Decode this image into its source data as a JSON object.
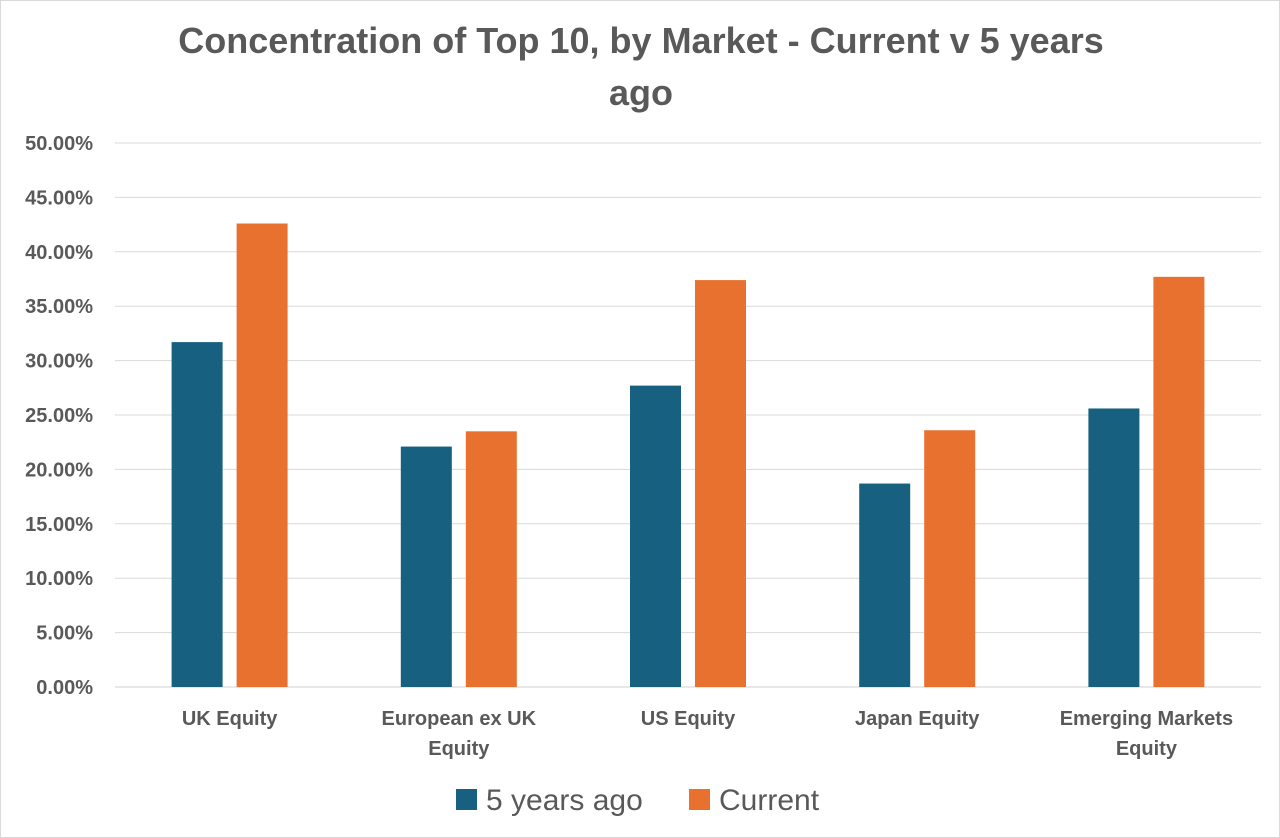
{
  "chart_data": {
    "type": "bar",
    "title": [
      "Concentration of Top 10, by Market - Current v 5 years",
      "ago"
    ],
    "categories": [
      [
        "UK Equity"
      ],
      [
        "European ex UK",
        "Equity"
      ],
      [
        "US Equity"
      ],
      [
        "Japan Equity"
      ],
      [
        "Emerging Markets",
        "Equity"
      ]
    ],
    "series": [
      {
        "name": "5 years ago",
        "color": "#17607f",
        "values": [
          31.7,
          22.1,
          27.7,
          18.7,
          25.6
        ]
      },
      {
        "name": "Current",
        "color": "#e87130",
        "values": [
          42.6,
          23.5,
          37.4,
          23.6,
          37.7
        ]
      }
    ],
    "yticks": [
      "0.00%",
      "5.00%",
      "10.00%",
      "15.00%",
      "20.00%",
      "25.00%",
      "30.00%",
      "35.00%",
      "40.00%",
      "45.00%",
      "50.00%"
    ],
    "ylim": [
      0,
      50
    ],
    "grid": true,
    "legend_position": "bottom"
  }
}
